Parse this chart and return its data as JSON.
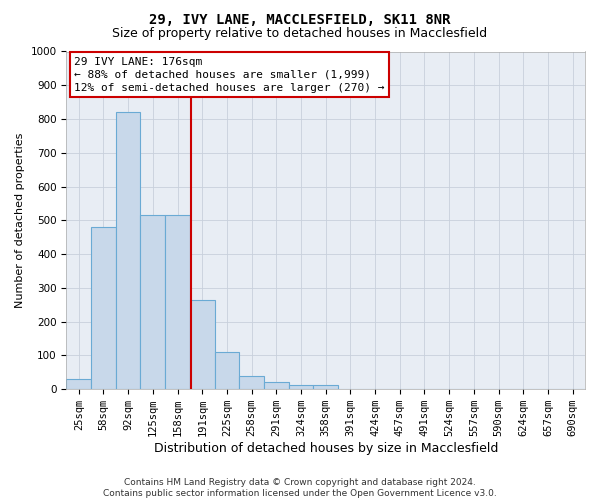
{
  "title": "29, IVY LANE, MACCLESFIELD, SK11 8NR",
  "subtitle": "Size of property relative to detached houses in Macclesfield",
  "xlabel": "Distribution of detached houses by size in Macclesfield",
  "ylabel": "Number of detached properties",
  "bar_labels": [
    "25sqm",
    "58sqm",
    "92sqm",
    "125sqm",
    "158sqm",
    "191sqm",
    "225sqm",
    "258sqm",
    "291sqm",
    "324sqm",
    "358sqm",
    "391sqm",
    "424sqm",
    "457sqm",
    "491sqm",
    "524sqm",
    "557sqm",
    "590sqm",
    "624sqm",
    "657sqm",
    "690sqm"
  ],
  "bar_values": [
    30,
    480,
    820,
    515,
    515,
    265,
    110,
    38,
    20,
    12,
    12,
    0,
    0,
    0,
    0,
    0,
    0,
    0,
    0,
    0,
    0
  ],
  "bar_color": "#c8d8ea",
  "bar_edge_color": "#6aaad4",
  "red_line_x": 4.55,
  "annotation_text": "29 IVY LANE: 176sqm\n← 88% of detached houses are smaller (1,999)\n12% of semi-detached houses are larger (270) →",
  "annotation_box_color": "#ffffff",
  "annotation_edge_color": "#cc0000",
  "ylim": [
    0,
    1000
  ],
  "yticks": [
    0,
    100,
    200,
    300,
    400,
    500,
    600,
    700,
    800,
    900,
    1000
  ],
  "grid_color": "#c8d0dc",
  "bg_color": "#e8edf4",
  "title_fontsize": 10,
  "subtitle_fontsize": 9,
  "xlabel_fontsize": 9,
  "ylabel_fontsize": 8,
  "tick_fontsize": 7.5,
  "footer_text": "Contains HM Land Registry data © Crown copyright and database right 2024.\nContains public sector information licensed under the Open Government Licence v3.0.",
  "footer_fontsize": 6.5
}
